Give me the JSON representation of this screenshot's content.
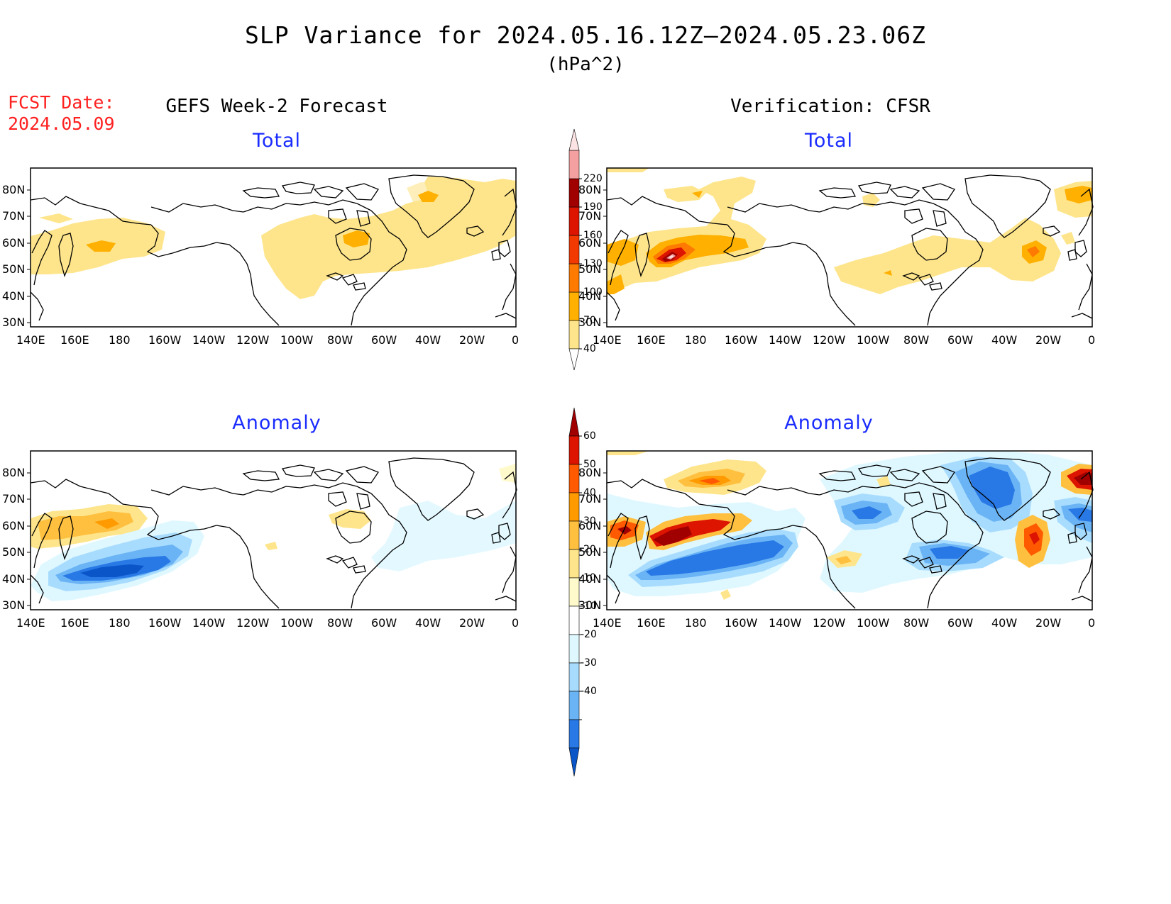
{
  "header": {
    "title": "SLP Variance for 2024.05.16.12Z—2024.05.23.06Z",
    "units": "(hPa^2)",
    "fcst_label": "FCST Date:",
    "fcst_date": "2024.05.09"
  },
  "columns": {
    "left": "GEFS Week-2 Forecast",
    "right": "Verification: CFSR"
  },
  "panels": {
    "top_left": "Total",
    "top_right": "Total",
    "bottom_left": "Anomaly",
    "bottom_right": "Anomaly"
  },
  "axes": {
    "lon_labels": [
      "140E",
      "160E",
      "180",
      "160W",
      "140W",
      "120W",
      "100W",
      "80W",
      "60W",
      "40W",
      "20W",
      "0"
    ],
    "lat_labels_top": [
      "80N",
      "70N",
      "60N",
      "50N",
      "40N",
      "30N"
    ],
    "lat_labels_bottom": [
      "80N",
      "70N",
      "60N",
      "50N",
      "40N",
      "30N"
    ]
  },
  "colorbars": {
    "total": {
      "levels": [
        "40",
        "70",
        "100",
        "130",
        "160",
        "190",
        "220"
      ],
      "colors": [
        "#fee58c",
        "#ffb000",
        "#ff7a00",
        "#f23a00",
        "#dc1400",
        "#a00000",
        "#f4a0a0",
        "#fde4e4"
      ]
    },
    "anomaly": {
      "levels": [
        "60",
        "50",
        "40",
        "30",
        "20",
        "10",
        "-10",
        "-20",
        "-30",
        "-40"
      ],
      "colors": [
        "#a00000",
        "#dc1400",
        "#ff5a00",
        "#ff9a00",
        "#ffc040",
        "#fee58c",
        "#fffacc",
        "#ffffff",
        "#dff8ff",
        "#a8dcff",
        "#6ab4f5",
        "#2878e6",
        "#0a55c8"
      ]
    }
  }
}
